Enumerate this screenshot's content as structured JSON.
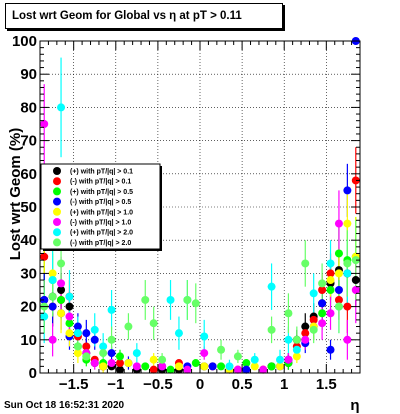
{
  "window": {
    "title": "Lost wrt Geom for Global vs   η at pT > 0.11",
    "date": "Sun Oct 18 16:52:31 2020"
  },
  "chart_data": {
    "type": "scatter",
    "title": "Lost wrt Geom for Global vs   η at pT > 0.11",
    "xlabel": "η",
    "ylabel": "Lost wrt Geom (%)",
    "xlim": [
      -1.9,
      1.9
    ],
    "ylim": [
      0,
      100
    ],
    "x_ticks": [
      -1.5,
      -1,
      -0.5,
      0,
      0.5,
      1,
      1.5
    ],
    "x_tick_labels": [
      "−1.5",
      "−1",
      "−0.5",
      "0",
      "0.5",
      "1",
      "1.5"
    ],
    "y_ticks": [
      0,
      10,
      20,
      30,
      40,
      50,
      60,
      70,
      80,
      90,
      100
    ],
    "y_tick_labels": [
      "0",
      "10",
      "20",
      "30",
      "40",
      "50",
      "60",
      "70",
      "80",
      "90",
      "100"
    ],
    "grid": true,
    "legend_position": "left-middle",
    "series": [
      {
        "name": "(+) with pT/|q| > 0.1",
        "color": "#000000",
        "x": [
          -1.85,
          -1.75,
          -1.65,
          -1.55,
          -1.45,
          -1.35,
          -1.25,
          -1.15,
          -1.05,
          -0.95,
          -0.75,
          -0.45,
          -0.25,
          0.05,
          0.35,
          0.55,
          0.85,
          1.05,
          1.15,
          1.25,
          1.35,
          1.45,
          1.55,
          1.65,
          1.75,
          1.85
        ],
        "y": [
          22,
          23,
          25,
          20,
          12,
          6,
          3,
          2,
          2,
          1,
          1,
          1,
          1,
          2,
          1,
          1,
          2,
          3,
          10,
          14,
          17,
          21,
          27,
          31,
          30,
          28
        ],
        "err": [
          8,
          6,
          5,
          4,
          3,
          2,
          1,
          1,
          1,
          1,
          1,
          1,
          1,
          1,
          1,
          1,
          1,
          2,
          3,
          4,
          4,
          5,
          5,
          6,
          7,
          8
        ]
      },
      {
        "name": "(-) with pT/|q| > 0.1",
        "color": "#ff0000",
        "x": [
          -1.85,
          -1.75,
          -1.65,
          -1.55,
          -1.45,
          -1.35,
          -1.25,
          -1.15,
          -0.95,
          -0.55,
          -0.25,
          0.15,
          0.45,
          0.75,
          1.05,
          1.15,
          1.25,
          1.35,
          1.45,
          1.55,
          1.65,
          1.75,
          1.85
        ],
        "y": [
          35,
          20,
          22,
          23,
          11,
          8,
          4,
          2,
          3,
          1,
          3,
          2,
          1,
          1,
          4,
          8,
          12,
          16,
          25,
          30,
          22,
          20,
          58
        ],
        "err": [
          10,
          6,
          5,
          5,
          3,
          2,
          1,
          1,
          1,
          1,
          1,
          1,
          1,
          1,
          2,
          3,
          3,
          4,
          5,
          6,
          6,
          8,
          10
        ]
      },
      {
        "name": "(+) with pT/|q| > 0.5",
        "color": "#00ff00",
        "x": [
          -1.85,
          -1.75,
          -1.65,
          -1.55,
          -1.45,
          -1.35,
          -1.15,
          -0.95,
          -0.65,
          -0.35,
          -0.05,
          0.25,
          0.55,
          0.85,
          1.05,
          1.25,
          1.45,
          1.55,
          1.65,
          1.75,
          1.85
        ],
        "y": [
          40,
          28,
          22,
          15,
          8,
          4,
          3,
          5,
          2,
          1,
          3,
          2,
          3,
          2,
          3,
          10,
          18,
          25,
          36,
          34,
          35
        ],
        "err": [
          12,
          8,
          6,
          5,
          3,
          2,
          2,
          2,
          1,
          1,
          1,
          1,
          1,
          1,
          2,
          3,
          5,
          6,
          8,
          10,
          12
        ]
      },
      {
        "name": "(-) with pT/|q| > 0.5",
        "color": "#0000ff",
        "x": [
          -1.85,
          -1.75,
          -1.65,
          -1.55,
          -1.45,
          -1.35,
          -1.25,
          -1.05,
          -0.85,
          -0.45,
          -0.15,
          0.15,
          0.55,
          0.95,
          1.05,
          1.25,
          1.35,
          1.45,
          1.55,
          1.65,
          1.75,
          1.85
        ],
        "y": [
          22,
          20,
          18,
          11,
          14,
          12,
          10,
          6,
          3,
          2,
          2,
          2,
          1,
          2,
          4,
          9,
          14,
          21,
          7,
          25,
          55,
          100
        ],
        "err": [
          8,
          6,
          5,
          4,
          4,
          4,
          3,
          2,
          2,
          1,
          1,
          1,
          1,
          1,
          2,
          3,
          4,
          5,
          3,
          6,
          8,
          0
        ]
      },
      {
        "name": "(+) with pT/|q| > 1.0",
        "color": "#ffff00",
        "x": [
          -1.85,
          -1.75,
          -1.65,
          -1.55,
          -1.45,
          -1.35,
          -1.15,
          -0.85,
          -0.55,
          -0.25,
          0.05,
          0.35,
          0.65,
          0.95,
          1.15,
          1.35,
          1.55,
          1.65,
          1.75,
          1.85
        ],
        "y": [
          42,
          30,
          18,
          12,
          6,
          5,
          2,
          3,
          4,
          2,
          2,
          1,
          2,
          2,
          5,
          14,
          28,
          30,
          45,
          35
        ],
        "err": [
          12,
          8,
          6,
          4,
          3,
          2,
          2,
          1,
          2,
          1,
          1,
          1,
          1,
          1,
          2,
          4,
          6,
          8,
          10,
          12
        ]
      },
      {
        "name": "(-) with pT/|q| > 1.0",
        "color": "#ff00ff",
        "x": [
          -1.85,
          -1.75,
          -1.65,
          -1.55,
          -1.35,
          -1.25,
          -1.05,
          -0.75,
          -0.45,
          -0.15,
          0.05,
          0.45,
          0.75,
          1.05,
          1.25,
          1.45,
          1.55,
          1.65,
          1.75,
          1.85
        ],
        "y": [
          75,
          10,
          27,
          17,
          6,
          3,
          3,
          2,
          2,
          1,
          6,
          1,
          1,
          4,
          10,
          15,
          18,
          45,
          10,
          25
        ],
        "err": [
          12,
          5,
          8,
          5,
          2,
          2,
          1,
          1,
          1,
          1,
          2,
          1,
          1,
          2,
          3,
          5,
          5,
          10,
          6,
          10
        ]
      },
      {
        "name": "(+) with pT/|q| > 2.0",
        "color": "#00ffff",
        "x": [
          -1.85,
          -1.75,
          -1.65,
          -1.55,
          -1.45,
          -1.25,
          -1.15,
          -1.05,
          -0.75,
          -0.35,
          -0.25,
          -0.15,
          0.05,
          0.35,
          0.65,
          0.85,
          0.95,
          1.05,
          1.15,
          1.35,
          1.55,
          1.65,
          1.75
        ],
        "y": [
          17,
          28,
          80,
          23,
          12,
          13,
          8,
          19,
          6,
          22,
          12,
          22,
          11,
          2,
          4,
          26,
          4,
          10,
          7,
          24,
          33,
          20,
          30
        ],
        "err": [
          8,
          10,
          15,
          8,
          5,
          5,
          4,
          6,
          3,
          6,
          5,
          6,
          5,
          2,
          2,
          7,
          3,
          4,
          3,
          6,
          7,
          8,
          10
        ]
      },
      {
        "name": "(-) with pT/|q| > 2.0",
        "color": "#66ff66",
        "x": [
          -1.85,
          -1.75,
          -1.65,
          -1.45,
          -1.35,
          -1.15,
          -1.05,
          -0.85,
          -0.65,
          -0.55,
          -0.45,
          -0.15,
          -0.05,
          0.25,
          0.45,
          0.85,
          1.05,
          1.15,
          1.25,
          1.35,
          1.45,
          1.65,
          1.75,
          1.85
        ],
        "y": [
          20,
          23,
          33,
          8,
          5,
          6,
          10,
          14,
          22,
          15,
          4,
          22,
          21,
          7,
          5,
          13,
          18,
          10,
          33,
          13,
          27,
          20,
          33,
          34
        ],
        "err": [
          8,
          6,
          8,
          3,
          2,
          3,
          4,
          4,
          6,
          5,
          2,
          6,
          6,
          3,
          2,
          4,
          6,
          4,
          7,
          4,
          6,
          8,
          10,
          12
        ]
      }
    ]
  }
}
